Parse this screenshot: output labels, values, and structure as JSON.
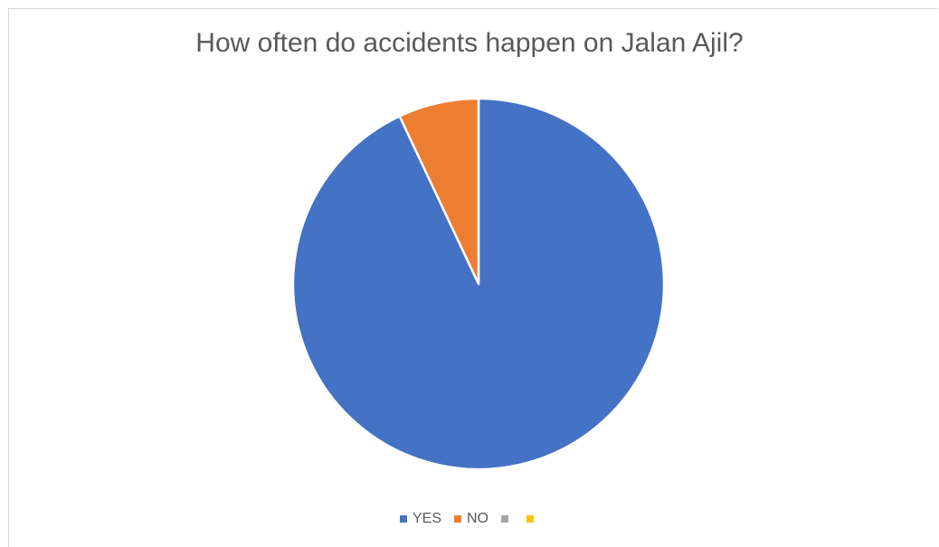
{
  "chart_data": {
    "type": "pie",
    "title": "How often do accidents happen on Jalan Ajil?",
    "categories": [
      "YES",
      "NO",
      "",
      ""
    ],
    "values": [
      93,
      7,
      0,
      0
    ],
    "colors": [
      "#4472C4",
      "#ED7D31",
      "#A5A5A5",
      "#FFC000"
    ],
    "legend_position": "bottom",
    "start_angle_deg": 0,
    "direction": "clockwise"
  }
}
